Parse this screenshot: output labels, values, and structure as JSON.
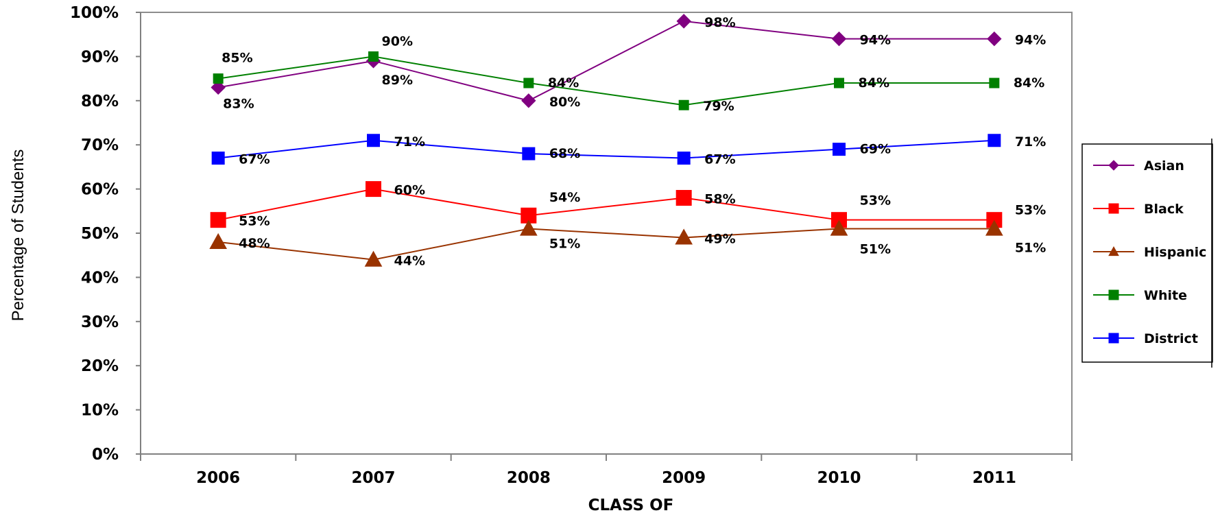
{
  "chart_data": {
    "type": "line",
    "title": "",
    "xlabel": "CLASS OF",
    "ylabel": "Percentage of Students",
    "categories": [
      "2006",
      "2007",
      "2008",
      "2009",
      "2010",
      "2011"
    ],
    "ylim": [
      0,
      100
    ],
    "yticks": [
      "0%",
      "10%",
      "20%",
      "30%",
      "40%",
      "50%",
      "60%",
      "70%",
      "80%",
      "90%",
      "100%"
    ],
    "grid": false,
    "legend_position": "right",
    "series": [
      {
        "name": "Asian",
        "color": "#800080",
        "marker": "diamond",
        "values": [
          83,
          89,
          80,
          98,
          94,
          94
        ],
        "labels": [
          "83%",
          "89%",
          "80%",
          "98%",
          "94%",
          "94%"
        ]
      },
      {
        "name": "Black",
        "color": "#ff0000",
        "marker": "square",
        "values": [
          53,
          60,
          54,
          58,
          53,
          53
        ],
        "labels": [
          "53%",
          "60%",
          "54%",
          "58%",
          "53%",
          "53%"
        ]
      },
      {
        "name": "Hispanic",
        "color": "#993300",
        "marker": "triangle",
        "values": [
          48,
          44,
          51,
          49,
          51,
          51
        ],
        "labels": [
          "48%",
          "44%",
          "51%",
          "49%",
          "51%",
          "51%"
        ]
      },
      {
        "name": "White",
        "color": "#008000",
        "marker": "square",
        "values": [
          85,
          90,
          84,
          79,
          84,
          84
        ],
        "labels": [
          "85%",
          "90%",
          "84%",
          "79%",
          "84%",
          "84%"
        ]
      },
      {
        "name": "District",
        "color": "#0000ff",
        "marker": "square",
        "values": [
          67,
          71,
          68,
          67,
          69,
          71
        ],
        "labels": [
          "67%",
          "71%",
          "68%",
          "67%",
          "69%",
          "71%"
        ]
      }
    ]
  }
}
